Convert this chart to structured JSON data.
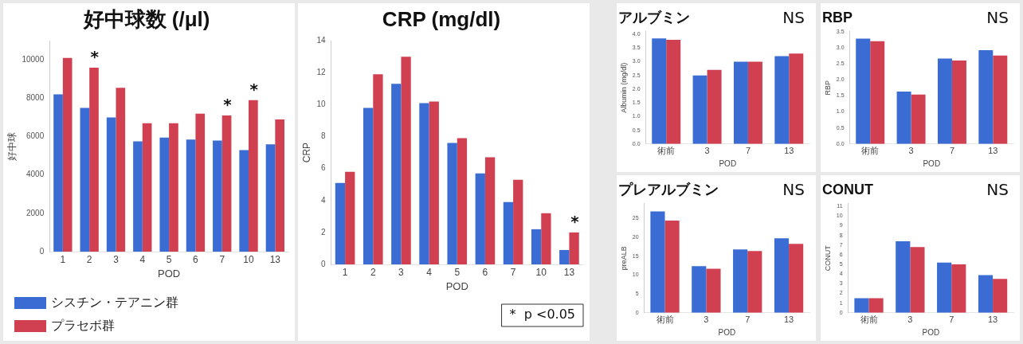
{
  "chart_data": [
    {
      "type": "bar",
      "title": "好中球数 (/μl)",
      "xlabel": "POD",
      "ylabel": "好中球",
      "categories": [
        "1",
        "2",
        "3",
        "4",
        "5",
        "6",
        "7",
        "10",
        "13"
      ],
      "series": [
        {
          "name": "シスチン・テアニン群",
          "color": "#3b6cd4",
          "values": [
            8200,
            7500,
            7000,
            5750,
            5950,
            5850,
            5800,
            5300,
            5600
          ]
        },
        {
          "name": "プラセボ群",
          "color": "#d04050",
          "values": [
            10100,
            9600,
            8550,
            6700,
            6700,
            7200,
            7100,
            7900,
            6900
          ]
        }
      ],
      "ylim": [
        0,
        11000
      ],
      "yticks": [
        0,
        2000,
        4000,
        6000,
        8000,
        10000
      ],
      "legend": "bottom",
      "annotations": [
        {
          "text": "*",
          "x": "2",
          "y": 9600
        },
        {
          "text": "*",
          "x": "7",
          "y": 7100
        },
        {
          "text": "*",
          "x": "10",
          "y": 7900
        }
      ]
    },
    {
      "type": "bar",
      "title": "CRP (mg/dl)",
      "xlabel": "POD",
      "ylabel": "CRP",
      "categories": [
        "1",
        "2",
        "3",
        "4",
        "5",
        "6",
        "7",
        "10",
        "13"
      ],
      "series": [
        {
          "color": "#3b6cd4",
          "values": [
            5.1,
            9.8,
            11.3,
            10.1,
            7.6,
            5.7,
            3.9,
            2.2,
            0.9
          ]
        },
        {
          "color": "#d04050",
          "values": [
            5.8,
            11.9,
            13.0,
            10.2,
            7.9,
            6.7,
            5.3,
            3.2,
            2.0
          ]
        }
      ],
      "ylim": [
        0,
        14
      ],
      "yticks": [
        0,
        2,
        4,
        6,
        8,
        10,
        12,
        14
      ],
      "annotations": [
        {
          "text": "*",
          "x": "13",
          "y": 2.0
        },
        "*  p <0.05"
      ]
    },
    {
      "type": "bar",
      "title": "アルブミン",
      "xlabel": "POD",
      "ylabel": "Albumin (mg/dl)",
      "categories": [
        "術前",
        "3",
        "7",
        "13"
      ],
      "series": [
        {
          "color": "#3b6cd4",
          "values": [
            3.85,
            2.5,
            3.0,
            3.2
          ]
        },
        {
          "color": "#d04050",
          "values": [
            3.8,
            2.7,
            3.0,
            3.3
          ]
        }
      ],
      "ylim": [
        0,
        4.1
      ],
      "yticks": [
        {
          "value": 0,
          "label": "0.0"
        },
        {
          "value": 0.5,
          "label": "0.5"
        },
        {
          "value": 1,
          "label": "1.0"
        },
        {
          "value": 1.5,
          "label": "1.5"
        },
        {
          "value": 2,
          "label": "2.0"
        },
        {
          "value": 2.5,
          "label": "2.5"
        },
        {
          "value": 3,
          "label": "3.0"
        },
        {
          "value": 3.5,
          "label": "3.5"
        },
        {
          "value": 4,
          "label": "4.0"
        }
      ],
      "annotations": [
        "NS"
      ]
    },
    {
      "type": "bar",
      "title": "RBP",
      "xlabel": "POD",
      "ylabel": "RBP",
      "categories": [
        "術前",
        "3",
        "7",
        "13"
      ],
      "series": [
        {
          "color": "#3b6cd4",
          "values": [
            3.28,
            1.63,
            2.66,
            2.92
          ]
        },
        {
          "color": "#d04050",
          "values": [
            3.2,
            1.54,
            2.6,
            2.75
          ]
        }
      ],
      "ylim": [
        0,
        3.5
      ],
      "yticks": [
        {
          "value": 0,
          "label": "0.0"
        },
        {
          "value": 0.5,
          "label": "0.5"
        },
        {
          "value": 1,
          "label": "1.0"
        },
        {
          "value": 1.5,
          "label": "1.5"
        },
        {
          "value": 2,
          "label": "2.0"
        },
        {
          "value": 2.5,
          "label": "2.5"
        },
        {
          "value": 3,
          "label": "3.0"
        },
        {
          "value": 3.5,
          "label": "3.5"
        }
      ],
      "annotations": [
        "NS"
      ]
    },
    {
      "type": "bar",
      "title": "プレアルブミン",
      "xlabel": "POD",
      "ylabel": "preALB",
      "categories": [
        "術前",
        "3",
        "7",
        "13"
      ],
      "series": [
        {
          "color": "#3b6cd4",
          "values": [
            26.9,
            12.4,
            16.8,
            19.8
          ]
        },
        {
          "color": "#d04050",
          "values": [
            24.5,
            11.7,
            16.4,
            18.3
          ]
        }
      ],
      "ylim": [
        0,
        29
      ],
      "yticks": [
        0,
        5,
        10,
        15,
        20,
        25
      ],
      "annotations": [
        "NS"
      ]
    },
    {
      "type": "bar",
      "title": "CONUT",
      "xlabel": "POD",
      "ylabel": "CONUT",
      "categories": [
        "術前",
        "3",
        "7",
        "13"
      ],
      "series": [
        {
          "color": "#3b6cd4",
          "values": [
            1.5,
            7.4,
            5.2,
            3.9
          ]
        },
        {
          "color": "#d04050",
          "values": [
            1.5,
            6.8,
            5.0,
            3.5
          ]
        }
      ],
      "ylim": [
        0,
        11.3
      ],
      "yticks": [
        0,
        1,
        2,
        3,
        4,
        5,
        6,
        7,
        8,
        9,
        10,
        11
      ],
      "annotations": [
        "NS"
      ]
    }
  ]
}
